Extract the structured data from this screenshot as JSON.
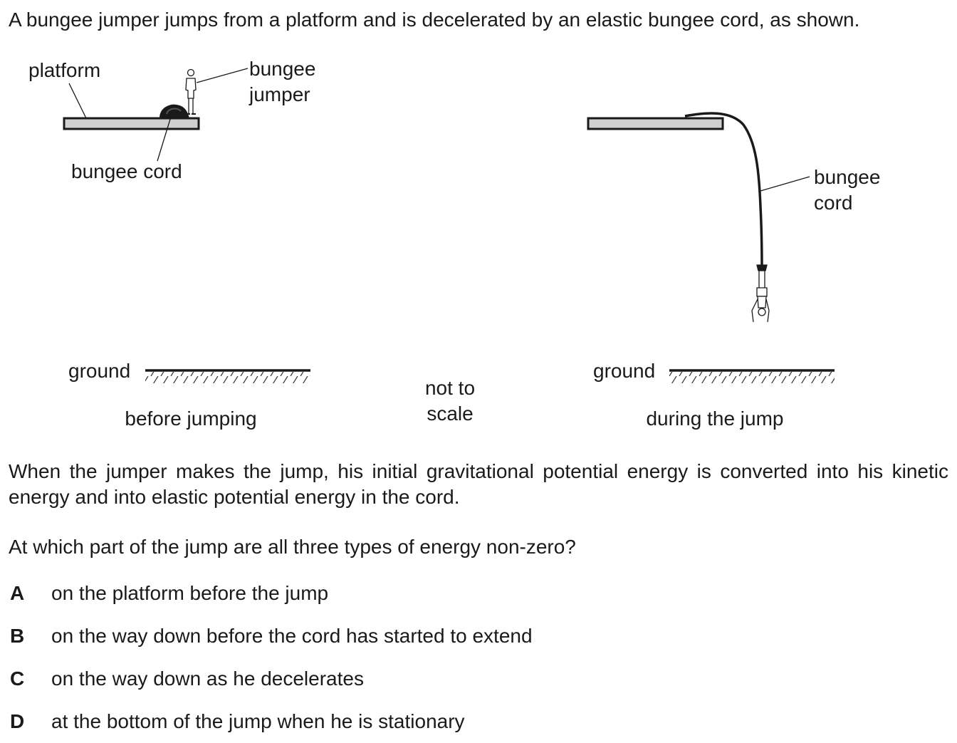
{
  "intro": "A bungee jumper jumps from a platform and is decelerated by an elastic bungee cord, as shown.",
  "diagram": {
    "left": {
      "platform_label": "platform",
      "jumper_label_line1": "bungee",
      "jumper_label_line2": "jumper",
      "cord_label": "bungee cord",
      "ground_label": "ground",
      "caption": "before jumping"
    },
    "middle": {
      "note_line1": "not to",
      "note_line2": "scale"
    },
    "right": {
      "cord_label_line1": "bungee",
      "cord_label_line2": "cord",
      "ground_label": "ground",
      "caption": "during the jump"
    }
  },
  "paragraph": "When the jumper makes the jump, his initial gravitational potential energy is converted into his kinetic energy and into elastic potential energy in the cord.",
  "question": "At which part of the jump are all three types of energy non-zero?",
  "options": [
    {
      "letter": "A",
      "text": "on the platform before the jump"
    },
    {
      "letter": "B",
      "text": "on the way down before the cord has started to extend"
    },
    {
      "letter": "C",
      "text": "on the way down as he decelerates"
    },
    {
      "letter": "D",
      "text": "at the bottom of the jump when he is stationary"
    }
  ]
}
